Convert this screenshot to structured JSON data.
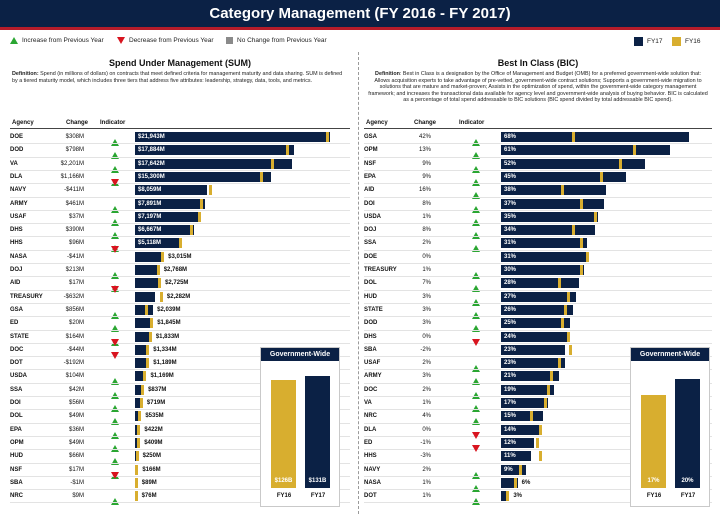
{
  "title": "Category Management (FY 2016 - FY 2017)",
  "legend": {
    "increase": "Increase from Previous Year",
    "decrease": "Decrease from Previous Year",
    "nochange": "No Change from Previous Year",
    "fy17": "FY17",
    "fy16": "FY16"
  },
  "colors": {
    "fy17": "#0b2145",
    "fy16": "#d8ae2f",
    "increase": "#2aa632",
    "decrease": "#d8141f",
    "nochange": "#8a8a8a",
    "accent": "#b51c2a"
  },
  "icons": {
    "increase": "triangle-up-icon",
    "decrease": "triangle-down-icon",
    "nochange": "square-icon"
  },
  "sum": {
    "title": "Spend Under Management (SUM)",
    "def_label": "Definition:",
    "definition": "Spend (in millions of dollars) on contracts that meet defined criteria for management maturity and data sharing. SUM is defined by a tiered maturity model, which includes three tiers that address five attributes: leadership, strategy, data, tools, and metrics.",
    "headers": {
      "agency": "Agency",
      "change": "Change",
      "indicator": "Indicator"
    },
    "max": 22500,
    "rows": [
      {
        "agency": "DOE",
        "change": "$308M",
        "ind": "up",
        "fy17": 21943,
        "fy16": 21635,
        "label": "$21,943M"
      },
      {
        "agency": "DOD",
        "change": "$798M",
        "ind": "up",
        "fy17": 17884,
        "fy16": 17086,
        "label": "$17,884M"
      },
      {
        "agency": "VA",
        "change": "$2,201M",
        "ind": "up",
        "fy17": 17642,
        "fy16": 15441,
        "label": "$17,642M"
      },
      {
        "agency": "DLA",
        "change": "$1,166M",
        "ind": "up",
        "fy17": 15300,
        "fy16": 14134,
        "label": "$15,300M"
      },
      {
        "agency": "NAVY",
        "change": "-$411M",
        "ind": "down",
        "fy17": 8059,
        "fy16": 8470,
        "label": "$8,059M"
      },
      {
        "agency": "ARMY",
        "change": "$461M",
        "ind": "up",
        "fy17": 7891,
        "fy16": 7430,
        "label": "$7,891M"
      },
      {
        "agency": "USAF",
        "change": "$37M",
        "ind": "up",
        "fy17": 7197,
        "fy16": 7160,
        "label": "$7,197M"
      },
      {
        "agency": "DHS",
        "change": "$390M",
        "ind": "up",
        "fy17": 6667,
        "fy16": 6277,
        "label": "$6,667M"
      },
      {
        "agency": "HHS",
        "change": "$96M",
        "ind": "up",
        "fy17": 5118,
        "fy16": 5022,
        "label": "$5,118M"
      },
      {
        "agency": "NASA",
        "change": "-$41M",
        "ind": "down",
        "fy17": 3015,
        "fy16": 3056,
        "label": "$3,015M"
      },
      {
        "agency": "DOJ",
        "change": "$213M",
        "ind": "up",
        "fy17": 2768,
        "fy16": 2555,
        "label": "$2,768M"
      },
      {
        "agency": "AID",
        "change": "$17M",
        "ind": "up",
        "fy17": 2725,
        "fy16": 2708,
        "label": "$2,725M"
      },
      {
        "agency": "TREASURY",
        "change": "-$632M",
        "ind": "down",
        "fy17": 2282,
        "fy16": 2914,
        "label": "$2,282M"
      },
      {
        "agency": "GSA",
        "change": "$856M",
        "ind": "up",
        "fy17": 2039,
        "fy16": 1183,
        "label": "$2,039M"
      },
      {
        "agency": "ED",
        "change": "$20M",
        "ind": "up",
        "fy17": 1845,
        "fy16": 1825,
        "label": "$1,845M"
      },
      {
        "agency": "STATE",
        "change": "$164M",
        "ind": "up",
        "fy17": 1833,
        "fy16": 1669,
        "label": "$1,833M"
      },
      {
        "agency": "DOC",
        "change": "-$44M",
        "ind": "down",
        "fy17": 1334,
        "fy16": 1378,
        "label": "$1,334M"
      },
      {
        "agency": "DOT",
        "change": "-$192M",
        "ind": "down",
        "fy17": 1189,
        "fy16": 1381,
        "label": "$1,189M"
      },
      {
        "agency": "USDA",
        "change": "$104M",
        "ind": "up",
        "fy17": 1169,
        "fy16": 1065,
        "label": "$1,169M"
      },
      {
        "agency": "SSA",
        "change": "$42M",
        "ind": "up",
        "fy17": 837,
        "fy16": 795,
        "label": "$837M"
      },
      {
        "agency": "DOI",
        "change": "$56M",
        "ind": "up",
        "fy17": 719,
        "fy16": 663,
        "label": "$719M"
      },
      {
        "agency": "DOL",
        "change": "$49M",
        "ind": "up",
        "fy17": 535,
        "fy16": 486,
        "label": "$535M"
      },
      {
        "agency": "EPA",
        "change": "$36M",
        "ind": "up",
        "fy17": 422,
        "fy16": 386,
        "label": "$422M"
      },
      {
        "agency": "OPM",
        "change": "$49M",
        "ind": "up",
        "fy17": 409,
        "fy16": 360,
        "label": "$409M"
      },
      {
        "agency": "HUD",
        "change": "$66M",
        "ind": "up",
        "fy17": 250,
        "fy16": 184,
        "label": "$250M"
      },
      {
        "agency": "NSF",
        "change": "$17M",
        "ind": "up",
        "fy17": 166,
        "fy16": 149,
        "label": "$166M"
      },
      {
        "agency": "SBA",
        "change": "-$1M",
        "ind": "down",
        "fy17": 89,
        "fy16": 90,
        "label": "$89M"
      },
      {
        "agency": "NRC",
        "change": "$9M",
        "ind": "up",
        "fy17": 76,
        "fy16": 67,
        "label": "$76M"
      }
    ],
    "gw": {
      "title": "Government-Wide",
      "fy16_label": "$126B",
      "fy17_label": "$131B",
      "fy16": 126,
      "fy17": 131,
      "max": 140,
      "yr16": "FY16",
      "yr17": "FY17"
    }
  },
  "bic": {
    "title": "Best In Class (BIC)",
    "def_label": "Definition",
    "definition": ": Best in Class is a designation by the Office of Management and Budget (OMB) for a preferred government-wide solution that: Allows acquisition experts to take advantage of pre-vetted, government-wide contract solutions; Supports a government-wide migration to solutions that are mature and market-proven; Assists in the optimization of spend, within the government-wide category management framework; and increases the transactional data available for agency level and government-wide analysis of buying behavior. BIC is calculated as a percentage of total spend addressable to BIC solutions (BIC spend divided by total addressable BIC spend).",
    "headers": {
      "agency": "Agency",
      "change": "Change",
      "indicator": "Indicator"
    },
    "max": 70,
    "rows": [
      {
        "agency": "GSA",
        "change": "42%",
        "ind": "up",
        "fy17": 68,
        "fy16": 26,
        "label": "68%"
      },
      {
        "agency": "OPM",
        "change": "13%",
        "ind": "up",
        "fy17": 61,
        "fy16": 48,
        "label": "61%"
      },
      {
        "agency": "NSF",
        "change": "9%",
        "ind": "up",
        "fy17": 52,
        "fy16": 43,
        "label": "52%"
      },
      {
        "agency": "EPA",
        "change": "9%",
        "ind": "up",
        "fy17": 45,
        "fy16": 36,
        "label": "45%"
      },
      {
        "agency": "AID",
        "change": "16%",
        "ind": "up",
        "fy17": 38,
        "fy16": 22,
        "label": "38%"
      },
      {
        "agency": "DOI",
        "change": "8%",
        "ind": "up",
        "fy17": 37,
        "fy16": 29,
        "label": "37%"
      },
      {
        "agency": "USDA",
        "change": "1%",
        "ind": "up",
        "fy17": 35,
        "fy16": 34,
        "label": "35%"
      },
      {
        "agency": "DOJ",
        "change": "8%",
        "ind": "up",
        "fy17": 34,
        "fy16": 26,
        "label": "34%"
      },
      {
        "agency": "SSA",
        "change": "2%",
        "ind": "up",
        "fy17": 31,
        "fy16": 29,
        "label": "31%"
      },
      {
        "agency": "DOE",
        "change": "0%",
        "ind": "none",
        "fy17": 31,
        "fy16": 31,
        "label": "31%"
      },
      {
        "agency": "TREASURY",
        "change": "1%",
        "ind": "up",
        "fy17": 30,
        "fy16": 29,
        "label": "30%"
      },
      {
        "agency": "DOL",
        "change": "7%",
        "ind": "up",
        "fy17": 28,
        "fy16": 21,
        "label": "28%"
      },
      {
        "agency": "HUD",
        "change": "3%",
        "ind": "up",
        "fy17": 27,
        "fy16": 24,
        "label": "27%"
      },
      {
        "agency": "STATE",
        "change": "3%",
        "ind": "up",
        "fy17": 26,
        "fy16": 23,
        "label": "26%"
      },
      {
        "agency": "DOD",
        "change": "3%",
        "ind": "up",
        "fy17": 25,
        "fy16": 22,
        "label": "25%"
      },
      {
        "agency": "DHS",
        "change": "0%",
        "ind": "none",
        "fy17": 24,
        "fy16": 24,
        "label": "24%"
      },
      {
        "agency": "SBA",
        "change": "-2%",
        "ind": "down",
        "fy17": 23,
        "fy16": 25,
        "label": "23%"
      },
      {
        "agency": "USAF",
        "change": "2%",
        "ind": "up",
        "fy17": 23,
        "fy16": 21,
        "label": "23%"
      },
      {
        "agency": "ARMY",
        "change": "3%",
        "ind": "up",
        "fy17": 21,
        "fy16": 18,
        "label": "21%"
      },
      {
        "agency": "DOC",
        "change": "2%",
        "ind": "up",
        "fy17": 19,
        "fy16": 17,
        "label": "19%"
      },
      {
        "agency": "VA",
        "change": "1%",
        "ind": "up",
        "fy17": 17,
        "fy16": 16,
        "label": "17%"
      },
      {
        "agency": "NRC",
        "change": "4%",
        "ind": "up",
        "fy17": 15,
        "fy16": 11,
        "label": "15%"
      },
      {
        "agency": "DLA",
        "change": "0%",
        "ind": "none",
        "fy17": 14,
        "fy16": 14,
        "label": "14%"
      },
      {
        "agency": "ED",
        "change": "-1%",
        "ind": "down",
        "fy17": 12,
        "fy16": 13,
        "label": "12%"
      },
      {
        "agency": "HHS",
        "change": "-3%",
        "ind": "down",
        "fy17": 11,
        "fy16": 14,
        "label": "11%"
      },
      {
        "agency": "NAVY",
        "change": "2%",
        "ind": "up",
        "fy17": 9,
        "fy16": 7,
        "label": "9%"
      },
      {
        "agency": "NASA",
        "change": "1%",
        "ind": "up",
        "fy17": 6,
        "fy16": 5,
        "label": "6%"
      },
      {
        "agency": "DOT",
        "change": "1%",
        "ind": "up",
        "fy17": 3,
        "fy16": 2,
        "label": "3%"
      }
    ],
    "gw": {
      "title": "Government-Wide",
      "fy16_label": "17%",
      "fy17_label": "20%",
      "fy16": 17,
      "fy17": 20,
      "max": 22,
      "yr16": "FY16",
      "yr17": "FY17"
    }
  }
}
